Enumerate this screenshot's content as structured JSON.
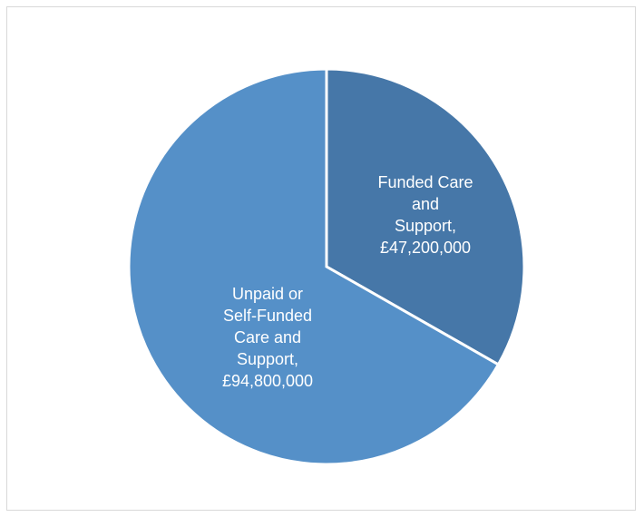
{
  "chart_data": {
    "type": "pie",
    "title": "",
    "start_angle_deg": 0,
    "direction": "clockwise",
    "slices": [
      {
        "name": "Funded Care and Support",
        "value": 47200000,
        "label_lines": [
          "Funded Care",
          "and",
          "Support,",
          "£47,200,000"
        ],
        "color": "#4677A8"
      },
      {
        "name": "Unpaid or Self-Funded Care and Support",
        "value": 94800000,
        "label_lines": [
          "Unpaid or",
          "Self-Funded",
          "Care and",
          "Support,",
          "£94,800,000"
        ],
        "color": "#5590C8"
      }
    ],
    "legend": "none"
  }
}
